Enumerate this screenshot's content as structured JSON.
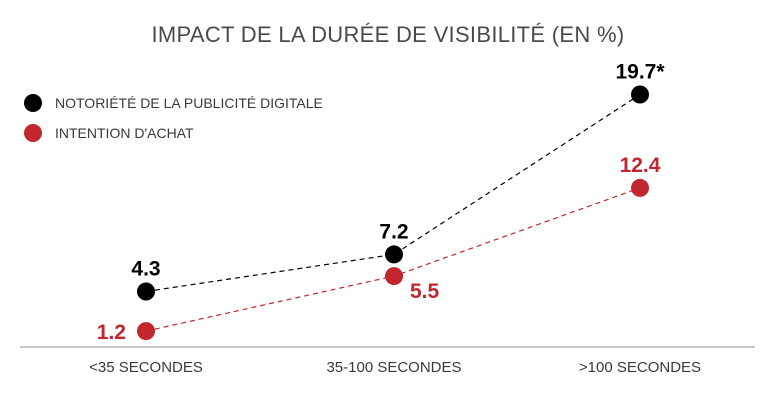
{
  "chart_data": {
    "type": "line",
    "title": "IMPACT DE LA DURÉE DE VISIBILITÉ (EN %)",
    "categories": [
      "<35 SECONDES",
      "35-100 SECONDES",
      ">100 SECONDES"
    ],
    "series": [
      {
        "name": "NOTORIÉTÉ DE LA PUBLICITÉ DIGITALE",
        "values": [
          4.3,
          7.2,
          19.7
        ],
        "labels": [
          "4.3",
          "7.2",
          "19.7*"
        ],
        "color": "#000000"
      },
      {
        "name": "INTENTION D'ACHAT",
        "values": [
          1.2,
          5.5,
          12.4
        ],
        "labels": [
          "1.2",
          "5.5",
          "12.4"
        ],
        "color": "#c1272d"
      }
    ],
    "ylim": [
      0,
      22
    ],
    "grid": false,
    "legend": "top-left",
    "line_style": "dashed"
  }
}
